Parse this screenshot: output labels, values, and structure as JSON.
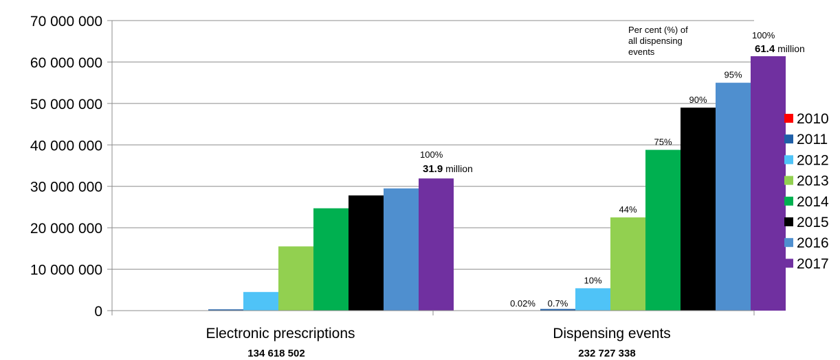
{
  "chart_data": {
    "type": "bar",
    "ylim": [
      0,
      70000000
    ],
    "yticks": [
      "0",
      "10 000 000",
      "20 000 000",
      "30 000 000",
      "40 000 000",
      "50 000 000",
      "60 000 000",
      "70 000 000"
    ],
    "yticks_values": [
      0,
      10000000,
      20000000,
      30000000,
      40000000,
      50000000,
      60000000,
      70000000
    ],
    "grid": true,
    "legend_position": "right",
    "categories": [
      "Electronic prescriptions",
      "Dispensing events"
    ],
    "category_totals": [
      "134 618 502",
      "232 727 338"
    ],
    "series": [
      {
        "name": "2010",
        "color": "#ff0000",
        "values": [
          0,
          10000
        ],
        "labels": [
          "",
          "0.02%"
        ]
      },
      {
        "name": "2011",
        "color": "#1f5fa8",
        "values": [
          300000,
          400000
        ],
        "labels": [
          "",
          "0.7%"
        ]
      },
      {
        "name": "2012",
        "color": "#4fc3f7",
        "values": [
          4500000,
          5400000
        ],
        "labels": [
          "",
          "10%"
        ]
      },
      {
        "name": "2013",
        "color": "#92d050",
        "values": [
          15500000,
          22500000
        ],
        "labels": [
          "",
          "44%"
        ]
      },
      {
        "name": "2014",
        "color": "#00b050",
        "values": [
          24700000,
          38800000
        ],
        "labels": [
          "",
          "75%"
        ]
      },
      {
        "name": "2015",
        "color": "#000000",
        "values": [
          27800000,
          49000000
        ],
        "labels": [
          "",
          "90%"
        ]
      },
      {
        "name": "2016",
        "color": "#4f8fcf",
        "values": [
          29500000,
          55000000
        ],
        "labels": [
          "",
          "95%"
        ]
      },
      {
        "name": "2017",
        "color": "#7030a0",
        "values": [
          31900000,
          61400000
        ],
        "labels": [
          "",
          ""
        ]
      }
    ],
    "annotations": {
      "ep_pct": "100%",
      "ep_value_bold": "31.9",
      "ep_value_unit": " million",
      "de_pct": "100%",
      "de_value_bold": "61.4",
      "de_value_unit": " million",
      "de_note": [
        "Per cent (%) of",
        "all dispensing",
        "events"
      ]
    }
  }
}
